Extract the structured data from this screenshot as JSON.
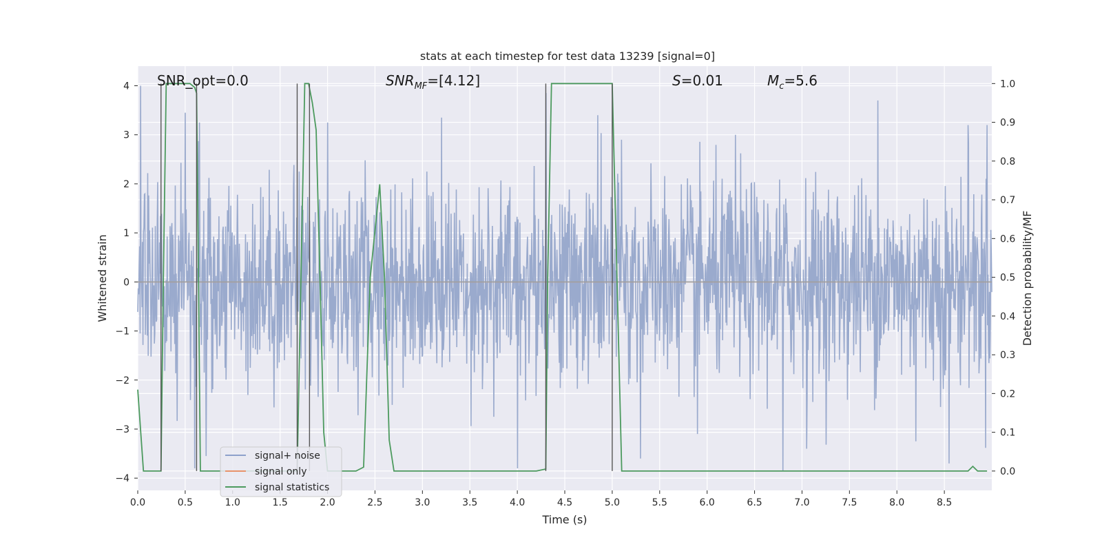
{
  "chart_data": {
    "type": "line",
    "title": "stats at each timestep for test data 13239 [signal=0]",
    "xlabel": "Time (s)",
    "ylabel": "Whitened strain",
    "y2label": "Detection probability/MF",
    "xlim": [
      0.0,
      9.0
    ],
    "ylim": [
      -4.25,
      4.4
    ],
    "y2lim": [
      -0.05,
      1.045
    ],
    "xticks": [
      "0.0",
      "0.5",
      "1.0",
      "1.5",
      "2.0",
      "2.5",
      "3.0",
      "3.5",
      "4.0",
      "4.5",
      "5.0",
      "5.5",
      "6.0",
      "6.5",
      "7.0",
      "7.5",
      "8.0",
      "8.5"
    ],
    "yticks": [
      "4",
      "3",
      "2",
      "1",
      "0",
      "−1",
      "−2",
      "−3",
      "−4"
    ],
    "y2ticks": [
      "1.0",
      "0.9",
      "0.8",
      "0.7",
      "0.6",
      "0.5",
      "0.4",
      "0.3",
      "0.2",
      "0.1",
      "0.0"
    ],
    "grid": true,
    "annotations": [
      {
        "text": "SNR_opt=0.0"
      },
      {
        "text": "SNR_MF=[4.12]",
        "base": "SNR",
        "sub": "MF",
        "tail": "=[4.12]"
      },
      {
        "text": "S=0.01",
        "base": "S",
        "tail": "=0.01"
      },
      {
        "text": "M_c=5.6",
        "base": "M",
        "sub": "c",
        "tail": "=5.6"
      }
    ],
    "legend": {
      "placement": "lower-left",
      "entries": [
        {
          "label": "signal+ noise",
          "color": "#8da0cb"
        },
        {
          "label": "signal only",
          "color": "#e8926a"
        },
        {
          "label": "signal statistics",
          "color": "#4c9a5e"
        }
      ]
    },
    "series": [
      {
        "name": "signal+ noise",
        "kind": "whitened-noise",
        "color": "#9aaacd",
        "samples": 1800,
        "sigma": 1.0,
        "spikes": [
          {
            "x": 0.03,
            "y": 4.0
          },
          {
            "x": 0.5,
            "y": 3.45
          },
          {
            "x": 0.65,
            "y": 3.25
          },
          {
            "x": 0.6,
            "y": -3.8
          },
          {
            "x": 0.72,
            "y": -3.55
          },
          {
            "x": 1.7,
            "y": 2.25
          },
          {
            "x": 2.0,
            "y": -3.95
          },
          {
            "x": 3.2,
            "y": 3.35
          },
          {
            "x": 3.75,
            "y": -2.75
          },
          {
            "x": 4.0,
            "y": -3.8
          },
          {
            "x": 4.3,
            "y": 3.85
          },
          {
            "x": 4.85,
            "y": 3.4
          },
          {
            "x": 5.1,
            "y": 2.9
          },
          {
            "x": 5.3,
            "y": -3.6
          },
          {
            "x": 6.3,
            "y": 3.0
          },
          {
            "x": 6.8,
            "y": -3.85
          },
          {
            "x": 7.05,
            "y": -3.4
          },
          {
            "x": 7.8,
            "y": 3.7
          },
          {
            "x": 8.2,
            "y": -3.25
          },
          {
            "x": 8.55,
            "y": -3.7
          },
          {
            "x": 8.75,
            "y": 3.2
          },
          {
            "x": 8.95,
            "y": 3.2
          },
          {
            "x": 2.0,
            "y": 3.25
          },
          {
            "x": 5.9,
            "y": -3.1
          }
        ]
      },
      {
        "name": "signal only",
        "color": "#e8926a",
        "x": [
          0.0,
          9.0
        ],
        "y": [
          0.0,
          0.0
        ]
      },
      {
        "name": "signal statistics",
        "color": "#4c9a5e",
        "axis": "right",
        "x": [
          0.0,
          0.06,
          0.1,
          0.15,
          0.2,
          0.245,
          0.27,
          0.3,
          0.4,
          0.5,
          0.55,
          0.6,
          0.62,
          0.64,
          0.66,
          0.7,
          0.8,
          1.0,
          1.2,
          1.4,
          1.6,
          1.68,
          1.72,
          1.76,
          1.8,
          1.84,
          1.88,
          1.92,
          1.96,
          2.0,
          2.1,
          2.2,
          2.3,
          2.38,
          2.45,
          2.55,
          2.6,
          2.65,
          2.7,
          2.8,
          3.0,
          3.5,
          4.0,
          4.2,
          4.3,
          4.32,
          4.36,
          4.4,
          4.6,
          4.8,
          4.9,
          5.0,
          5.05,
          5.1,
          5.2,
          5.4,
          6.0,
          7.0,
          8.0,
          8.6,
          8.75,
          8.8,
          8.85,
          8.95
        ],
        "y": [
          0.21,
          0.0,
          0.0,
          0.0,
          0.0,
          0.0,
          0.5,
          1.0,
          1.0,
          1.0,
          1.0,
          0.99,
          0.975,
          0.5,
          0.0,
          0.0,
          0.0,
          0.0,
          0.0,
          0.0,
          0.0,
          0.0,
          0.5,
          1.0,
          1.0,
          0.95,
          0.88,
          0.5,
          0.1,
          0.0,
          0.0,
          0.0,
          0.0,
          0.01,
          0.5,
          0.74,
          0.5,
          0.08,
          0.0,
          0.0,
          0.0,
          0.0,
          0.0,
          0.0,
          0.005,
          0.5,
          1.0,
          1.0,
          1.0,
          1.0,
          1.0,
          1.0,
          0.5,
          0.0,
          0.0,
          0.0,
          0.0,
          0.0,
          0.0,
          0.0,
          0.0,
          0.012,
          0.0,
          0.0
        ]
      }
    ],
    "vlines": [
      0.245,
      0.62,
      1.68,
      1.81,
      4.3,
      5.0
    ]
  }
}
